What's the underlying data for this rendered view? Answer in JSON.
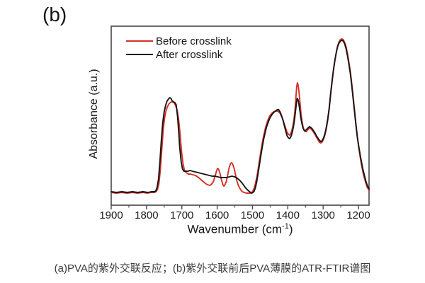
{
  "figure": {
    "panel_label": "(b)",
    "caption": "(a)PVA的紫外交联反应；(b)紫外交联前后PVA薄膜的ATR-FTIR谱图"
  },
  "chart_data": {
    "type": "line",
    "title": "",
    "ylabel": "Absorbance (a.u.)",
    "xlabel_parts": {
      "main": "Wavenumber (cm",
      "sup": "-1",
      "close": ")"
    },
    "x_axis": {
      "min": 1170,
      "max": 1900,
      "reversed": true,
      "major_ticks": [
        1900,
        1800,
        1700,
        1600,
        1500,
        1400,
        1300,
        1200
      ],
      "major_tick_labels": [
        "1900",
        "1800",
        "1700",
        "1600",
        "1500",
        "1400",
        "1300",
        "1200"
      ],
      "minor_ticks": [
        1850,
        1750,
        1650,
        1550,
        1450,
        1350,
        1250
      ]
    },
    "y_axis": {
      "units": "a.u.",
      "ticks": []
    },
    "legend": [
      {
        "label": "Before crosslink",
        "color": "#d42f27"
      },
      {
        "label": "After crosslink",
        "color": "#161616"
      }
    ],
    "series": [
      {
        "id": "spectrum-before-crosslink",
        "name": "Before crosslink",
        "color": "#d42f27",
        "points": [
          [
            1900,
            1
          ],
          [
            1885,
            0
          ],
          [
            1870,
            1
          ],
          [
            1855,
            0
          ],
          [
            1840,
            1
          ],
          [
            1825,
            0
          ],
          [
            1810,
            1
          ],
          [
            1797,
            0
          ],
          [
            1786,
            1
          ],
          [
            1778,
            1
          ],
          [
            1773,
            2
          ],
          [
            1769,
            5
          ],
          [
            1765,
            13
          ],
          [
            1761,
            32
          ],
          [
            1757,
            60
          ],
          [
            1753,
            88
          ],
          [
            1749,
            106
          ],
          [
            1745,
            116
          ],
          [
            1741,
            122
          ],
          [
            1737,
            126
          ],
          [
            1733,
            128
          ],
          [
            1729,
            129
          ],
          [
            1725,
            129
          ],
          [
            1721,
            127
          ],
          [
            1717,
            123
          ],
          [
            1713,
            117
          ],
          [
            1709,
            104
          ],
          [
            1705,
            84
          ],
          [
            1701,
            60
          ],
          [
            1697,
            43
          ],
          [
            1693,
            33
          ],
          [
            1688,
            29
          ],
          [
            1682,
            27
          ],
          [
            1676,
            27
          ],
          [
            1669,
            26
          ],
          [
            1662,
            25
          ],
          [
            1655,
            23
          ],
          [
            1648,
            20
          ],
          [
            1641,
            17
          ],
          [
            1634,
            14
          ],
          [
            1628,
            12
          ],
          [
            1622,
            11
          ],
          [
            1617,
            12
          ],
          [
            1611,
            16
          ],
          [
            1606,
            24
          ],
          [
            1602,
            31
          ],
          [
            1599,
            35
          ],
          [
            1596,
            34
          ],
          [
            1592,
            28
          ],
          [
            1588,
            19
          ],
          [
            1584,
            12
          ],
          [
            1581,
            10
          ],
          [
            1578,
            12
          ],
          [
            1574,
            17
          ],
          [
            1570,
            26
          ],
          [
            1566,
            36
          ],
          [
            1562,
            42
          ],
          [
            1559,
            43
          ],
          [
            1556,
            41
          ],
          [
            1552,
            35
          ],
          [
            1548,
            26
          ],
          [
            1544,
            17
          ],
          [
            1540,
            11
          ],
          [
            1535,
            6
          ],
          [
            1529,
            2
          ],
          [
            1523,
            1
          ],
          [
            1517,
            0
          ],
          [
            1511,
            0
          ],
          [
            1505,
            0
          ],
          [
            1500,
            2
          ],
          [
            1496,
            6
          ],
          [
            1492,
            13
          ],
          [
            1488,
            22
          ],
          [
            1484,
            34
          ],
          [
            1480,
            47
          ],
          [
            1476,
            60
          ],
          [
            1472,
            72
          ],
          [
            1468,
            82
          ],
          [
            1464,
            91
          ],
          [
            1460,
            98
          ],
          [
            1455,
            105
          ],
          [
            1450,
            110
          ],
          [
            1445,
            113
          ],
          [
            1440,
            115
          ],
          [
            1435,
            116
          ],
          [
            1430,
            116
          ],
          [
            1426,
            115
          ],
          [
            1422,
            113
          ],
          [
            1418,
            109
          ],
          [
            1414,
            104
          ],
          [
            1410,
            98
          ],
          [
            1406,
            92
          ],
          [
            1402,
            86
          ],
          [
            1398,
            83
          ],
          [
            1395,
            82
          ],
          [
            1392,
            84
          ],
          [
            1389,
            88
          ],
          [
            1386,
            94
          ],
          [
            1383,
            103
          ],
          [
            1380,
            116
          ],
          [
            1377,
            136
          ],
          [
            1375,
            150
          ],
          [
            1373,
            156
          ],
          [
            1371,
            153
          ],
          [
            1369,
            146
          ],
          [
            1366,
            131
          ],
          [
            1363,
            114
          ],
          [
            1360,
            102
          ],
          [
            1357,
            94
          ],
          [
            1354,
            89
          ],
          [
            1351,
            87
          ],
          [
            1347,
            87
          ],
          [
            1343,
            90
          ],
          [
            1339,
            92
          ],
          [
            1335,
            91
          ],
          [
            1331,
            89
          ],
          [
            1327,
            86
          ],
          [
            1323,
            83
          ],
          [
            1319,
            79
          ],
          [
            1315,
            76
          ],
          [
            1311,
            72
          ],
          [
            1307,
            71
          ],
          [
            1303,
            72
          ],
          [
            1299,
            76
          ],
          [
            1295,
            82
          ],
          [
            1291,
            91
          ],
          [
            1287,
            103
          ],
          [
            1283,
            118
          ],
          [
            1279,
            137
          ],
          [
            1275,
            155
          ],
          [
            1271,
            172
          ],
          [
            1267,
            186
          ],
          [
            1263,
            198
          ],
          [
            1259,
            208
          ],
          [
            1255,
            214
          ],
          [
            1251,
            217
          ],
          [
            1247,
            218
          ],
          [
            1243,
            217
          ],
          [
            1239,
            213
          ],
          [
            1235,
            207
          ],
          [
            1231,
            197
          ],
          [
            1227,
            185
          ],
          [
            1223,
            172
          ],
          [
            1219,
            155
          ],
          [
            1215,
            136
          ],
          [
            1211,
            117
          ],
          [
            1207,
            97
          ],
          [
            1203,
            80
          ],
          [
            1199,
            64
          ],
          [
            1195,
            51
          ],
          [
            1191,
            39
          ],
          [
            1187,
            29
          ],
          [
            1183,
            21
          ],
          [
            1179,
            14
          ],
          [
            1175,
            8
          ],
          [
            1171,
            5
          ],
          [
            1170,
            4
          ]
        ]
      },
      {
        "id": "spectrum-after-crosslink",
        "name": "After crosslink",
        "color": "#161616",
        "points": [
          [
            1900,
            2
          ],
          [
            1885,
            1
          ],
          [
            1870,
            2
          ],
          [
            1855,
            1
          ],
          [
            1840,
            2
          ],
          [
            1825,
            1
          ],
          [
            1810,
            2
          ],
          [
            1797,
            1
          ],
          [
            1786,
            2
          ],
          [
            1778,
            2
          ],
          [
            1774,
            3
          ],
          [
            1770,
            8
          ],
          [
            1766,
            20
          ],
          [
            1762,
            45
          ],
          [
            1758,
            75
          ],
          [
            1754,
            100
          ],
          [
            1750,
            115
          ],
          [
            1746,
            124
          ],
          [
            1742,
            130
          ],
          [
            1738,
            133
          ],
          [
            1734,
            135
          ],
          [
            1731,
            134
          ],
          [
            1728,
            131
          ],
          [
            1724,
            129
          ],
          [
            1720,
            128
          ],
          [
            1716,
            125
          ],
          [
            1712,
            108
          ],
          [
            1709,
            88
          ],
          [
            1706,
            65
          ],
          [
            1702,
            45
          ],
          [
            1698,
            34
          ],
          [
            1694,
            31
          ],
          [
            1689,
            31
          ],
          [
            1683,
            31
          ],
          [
            1677,
            32
          ],
          [
            1670,
            31
          ],
          [
            1662,
            30
          ],
          [
            1654,
            29
          ],
          [
            1646,
            28
          ],
          [
            1638,
            27
          ],
          [
            1630,
            26
          ],
          [
            1622,
            25
          ],
          [
            1614,
            24
          ],
          [
            1606,
            24
          ],
          [
            1598,
            23
          ],
          [
            1590,
            22
          ],
          [
            1582,
            22
          ],
          [
            1574,
            22
          ],
          [
            1566,
            23
          ],
          [
            1558,
            24
          ],
          [
            1550,
            23
          ],
          [
            1543,
            21
          ],
          [
            1536,
            18
          ],
          [
            1529,
            14
          ],
          [
            1522,
            9
          ],
          [
            1515,
            5
          ],
          [
            1508,
            2
          ],
          [
            1502,
            0
          ],
          [
            1496,
            2
          ],
          [
            1492,
            7
          ],
          [
            1488,
            16
          ],
          [
            1484,
            28
          ],
          [
            1480,
            41
          ],
          [
            1476,
            54
          ],
          [
            1472,
            66
          ],
          [
            1468,
            77
          ],
          [
            1464,
            86
          ],
          [
            1460,
            94
          ],
          [
            1455,
            101
          ],
          [
            1450,
            107
          ],
          [
            1445,
            111
          ],
          [
            1440,
            114
          ],
          [
            1435,
            116
          ],
          [
            1430,
            118
          ],
          [
            1426,
            118
          ],
          [
            1422,
            115
          ],
          [
            1418,
            110
          ],
          [
            1414,
            104
          ],
          [
            1410,
            96
          ],
          [
            1406,
            88
          ],
          [
            1402,
            81
          ],
          [
            1398,
            78
          ],
          [
            1395,
            77
          ],
          [
            1392,
            79
          ],
          [
            1389,
            83
          ],
          [
            1386,
            89
          ],
          [
            1383,
            97
          ],
          [
            1380,
            108
          ],
          [
            1377,
            121
          ],
          [
            1375,
            130
          ],
          [
            1373,
            134
          ],
          [
            1371,
            132
          ],
          [
            1369,
            127
          ],
          [
            1366,
            117
          ],
          [
            1363,
            106
          ],
          [
            1360,
            98
          ],
          [
            1357,
            92
          ],
          [
            1354,
            89
          ],
          [
            1351,
            88
          ],
          [
            1347,
            90
          ],
          [
            1343,
            92
          ],
          [
            1339,
            94
          ],
          [
            1335,
            93
          ],
          [
            1331,
            91
          ],
          [
            1327,
            88
          ],
          [
            1323,
            85
          ],
          [
            1319,
            81
          ],
          [
            1315,
            78
          ],
          [
            1311,
            75
          ],
          [
            1307,
            73
          ],
          [
            1303,
            74
          ],
          [
            1299,
            78
          ],
          [
            1295,
            84
          ],
          [
            1291,
            93
          ],
          [
            1287,
            105
          ],
          [
            1283,
            120
          ],
          [
            1279,
            139
          ],
          [
            1275,
            157
          ],
          [
            1271,
            173
          ],
          [
            1267,
            187
          ],
          [
            1263,
            198
          ],
          [
            1259,
            207
          ],
          [
            1255,
            212
          ],
          [
            1251,
            215
          ],
          [
            1247,
            216
          ],
          [
            1243,
            215
          ],
          [
            1239,
            211
          ],
          [
            1235,
            204
          ],
          [
            1231,
            194
          ],
          [
            1227,
            182
          ],
          [
            1223,
            169
          ],
          [
            1219,
            152
          ],
          [
            1215,
            133
          ],
          [
            1211,
            114
          ],
          [
            1207,
            95
          ],
          [
            1203,
            79
          ],
          [
            1199,
            66
          ],
          [
            1195,
            54
          ],
          [
            1191,
            43
          ],
          [
            1187,
            33
          ],
          [
            1183,
            25
          ],
          [
            1179,
            17
          ],
          [
            1175,
            11
          ],
          [
            1171,
            7
          ],
          [
            1170,
            6
          ]
        ]
      }
    ]
  }
}
